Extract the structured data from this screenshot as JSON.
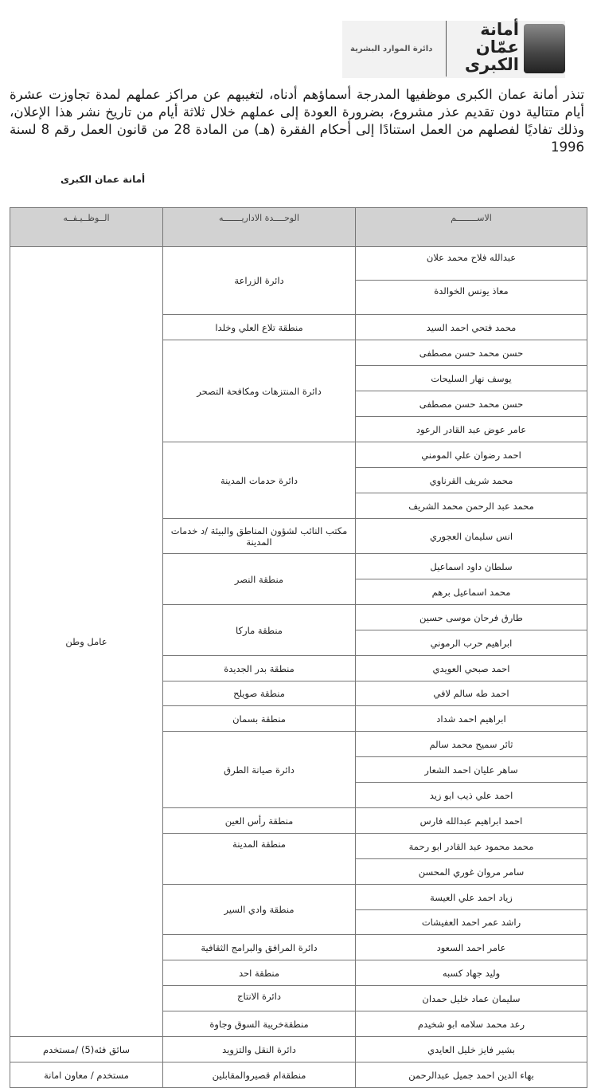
{
  "header": {
    "logo_lines": [
      "أمانة",
      "عمّان",
      "الكبرى"
    ],
    "department": "دائرة الموارد البشرية"
  },
  "intro": "تنذر أمانة عمان الكبرى موظفيها المدرجة أسماؤهم أدناه، لتغيبهم عن مراكز عملهم لمدة تجاوزت عشرة أيام متتالية دون تقديم عذر مشروع، بضرورة العودة إلى عملهم خلال ثلاثة أيام من تاريخ نشر هذا الإعلان، وذلك تفاديًا لفصلهم من العمل استنادًا إلى أحكام الفقرة (هـ) من المادة 28 من قانون العمل رقم 8 لسنة 1996",
  "signature": "أمانة عمان الكبرى",
  "table": {
    "headers": {
      "name": "الاســــــــم",
      "unit": "الوحــــدة الاداريـــــــه",
      "job": "الــوظــيـفــه"
    },
    "rows": [
      "عبدالله فلاح محمد علان",
      "معاذ يونس الخوالدة",
      "محمد فتحي احمد السيد",
      "حسن محمد حسن مصطفى",
      "يوسف نهار السليحات",
      "حسن محمد حسن مصطفى",
      "عامر عوض عبد القادر الرعود",
      "احمد رضوان علي المومني",
      "محمد شريف القرناوي",
      "محمد عبد الرحمن محمد الشريف",
      "انس سليمان العجوري",
      "سلطان داود اسماعيل",
      "محمد اسماعيل برهم",
      "طارق فرحان موسى حسين",
      "ابراهيم حرب الرموني",
      "احمد صبحي العويدي",
      "احمد طه سالم لافي",
      "ابراهيم احمد شداد",
      "ثائر سميح محمد سالم",
      "ساهر عليان احمد الشعار",
      "احمد علي ذيب ابو زيد",
      "احمد ابراهيم عبدالله فارس",
      "محمد محمود عبد القادر ابو رحمة",
      "سامر مروان غوري المحسن",
      "زياد احمد علي العيسة",
      "راشد عمر احمد العفيشات",
      "عامر احمد السعود",
      "وليد جهاد كسبه",
      "سليمان عماد خليل حمدان",
      "رعد محمد سلامه ابو شخيدم",
      "بشير فايز خليل العايدي",
      "بهاء الدين احمد جميل عبدالرحمن"
    ],
    "units": [
      {
        "label": "دائرة الزراعة",
        "span": 2
      },
      {
        "label": "منطقة تلاع العلي وخلدا",
        "span": 1
      },
      {
        "label": "دائرة المنتزهات ومكافحة التصحر",
        "span": 4
      },
      {
        "label": "دائرة حدمات المدينة",
        "span": 3
      },
      {
        "label": "مكتب النائب لشؤون المناطق والبيئة /د خدمات المدينة",
        "span": 1
      },
      {
        "label": "منطقة النصر",
        "span": 2
      },
      {
        "label": "منطقة ماركا",
        "span": 2
      },
      {
        "label": "منطقة بدر الجديدة",
        "span": 1
      },
      {
        "label": "منطقة صويلح",
        "span": 1
      },
      {
        "label": "منطقة بسمان",
        "span": 1
      },
      {
        "label": "دائرة صيانة الطرق",
        "span": 3
      },
      {
        "label": "منطقة رأس العين",
        "span": 1
      },
      {
        "label": "منطقة المدينة",
        "span": 2,
        "top": true
      },
      {
        "label": "منطقة وادي السير",
        "span": 2
      },
      {
        "label": "دائرة المرافق والبرامج الثقافية",
        "span": 1
      },
      {
        "label": "منطقة احد",
        "span": 1
      },
      {
        "label": "دائرة الانتاج",
        "span": 1,
        "top": true
      },
      {
        "label": "منطقةخريبة السوق وجاوة",
        "span": 1
      },
      {
        "label": "دائرة النقل والتزويد",
        "span": 1
      },
      {
        "label": "منطقةام قصيروالمقابلين",
        "span": 1
      }
    ],
    "jobs": [
      {
        "label": "عامل وطن",
        "span": 30
      },
      {
        "label": "سائق فئه(5) /مستخدم",
        "span": 1
      },
      {
        "label": "مستخدم / معاون امانة",
        "span": 1
      }
    ]
  }
}
